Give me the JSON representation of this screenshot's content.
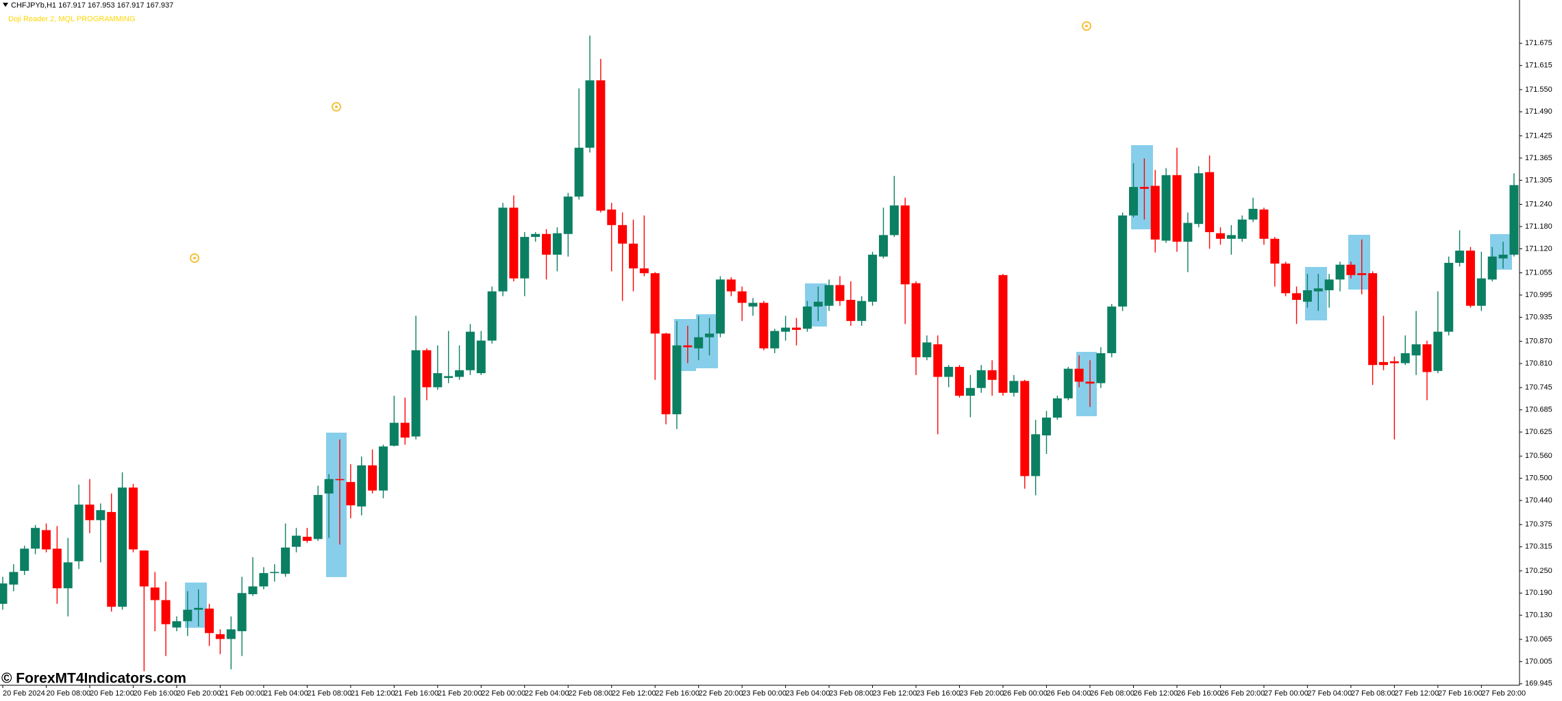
{
  "chart_data": {
    "type": "candlestick",
    "title": "CHFJPYb,H1  167.917 167.953 167.917 167.937",
    "subtitle": "Doji Reader 2, MQL PROGRAMMING",
    "watermark": "© ForexMT4Indicators.com",
    "up_color": "#0b7f62",
    "down_color": "#ff0000",
    "ylim": [
      169.941,
      171.792
    ],
    "yticks": [
      171.675,
      171.615,
      {
        "value": 171.55,
        "label": "171.550"
      },
      {
        "value": 171.49,
        "label": "171.490"
      },
      171.425,
      171.365,
      171.305,
      {
        "value": 171.24,
        "label": "171.240"
      },
      {
        "value": 171.18,
        "label": "171.180"
      },
      {
        "value": 171.12,
        "label": "171.120"
      },
      171.055,
      170.995,
      170.935,
      {
        "value": 170.87,
        "label": "170.870"
      },
      {
        "value": 170.81,
        "label": "170.810"
      },
      170.745,
      170.685,
      170.625,
      {
        "value": 170.56,
        "label": "170.560"
      },
      {
        "value": 170.5,
        "label": "170.500"
      },
      {
        "value": 170.44,
        "label": "170.440"
      },
      170.375,
      170.315,
      {
        "value": 170.25,
        "label": "170.250"
      },
      {
        "value": 170.19,
        "label": "170.190"
      },
      {
        "value": 170.13,
        "label": "170.130"
      },
      170.065,
      170.005,
      169.945
    ],
    "categories": [
      "20 Feb 2024",
      null,
      null,
      null,
      "20 Feb 08:00",
      null,
      null,
      null,
      "20 Feb 12:00",
      null,
      null,
      null,
      "20 Feb 16:00",
      null,
      null,
      null,
      "20 Feb 20:00",
      null,
      null,
      null,
      "21 Feb 00:00",
      null,
      null,
      null,
      "21 Feb 04:00",
      null,
      null,
      null,
      "21 Feb 08:00",
      null,
      null,
      null,
      "21 Feb 12:00",
      null,
      null,
      null,
      "21 Feb 16:00",
      null,
      null,
      null,
      "21 Feb 20:00",
      null,
      null,
      null,
      "22 Feb 00:00",
      null,
      null,
      null,
      "22 Feb 04:00",
      null,
      null,
      null,
      "22 Feb 08:00",
      null,
      null,
      null,
      "22 Feb 12:00",
      null,
      null,
      null,
      "22 Feb 16:00",
      null,
      null,
      null,
      "22 Feb 20:00",
      null,
      null,
      null,
      "23 Feb 00:00",
      null,
      null,
      null,
      "23 Feb 04:00",
      null,
      null,
      null,
      "23 Feb 08:00",
      null,
      null,
      null,
      "23 Feb 12:00",
      null,
      null,
      null,
      "23 Feb 16:00",
      null,
      null,
      null,
      "23 Feb 20:00",
      null,
      null,
      null,
      "26 Feb 00:00",
      null,
      null,
      null,
      "26 Feb 04:00",
      null,
      null,
      null,
      "26 Feb 08:00",
      null,
      null,
      null,
      "26 Feb 12:00",
      null,
      null,
      null,
      "26 Feb 16:00",
      null,
      null,
      null,
      "26 Feb 20:00",
      null,
      null,
      null,
      "27 Feb 00:00",
      null,
      null,
      null,
      "27 Feb 04:00",
      null,
      null,
      null,
      "27 Feb 08:00",
      null,
      null,
      null,
      "27 Feb 12:00",
      null,
      null,
      null,
      "27 Feb 16:00",
      null,
      null,
      null,
      "27 Feb 20:00",
      null,
      null,
      null
    ],
    "ohlc": [
      [
        170.161,
        170.234,
        170.145,
        170.216
      ],
      [
        170.213,
        170.268,
        170.195,
        170.247
      ],
      [
        170.25,
        170.318,
        170.239,
        170.31
      ],
      [
        170.31,
        170.374,
        170.295,
        170.366
      ],
      [
        170.36,
        170.378,
        170.3,
        170.308
      ],
      [
        170.31,
        170.371,
        170.161,
        170.203
      ],
      [
        170.203,
        170.339,
        170.127,
        170.273
      ],
      [
        170.276,
        170.483,
        170.255,
        170.429
      ],
      [
        170.429,
        170.498,
        170.352,
        170.387
      ],
      [
        170.387,
        170.432,
        170.273,
        170.414
      ],
      [
        170.409,
        170.459,
        170.14,
        170.153
      ],
      [
        170.153,
        170.516,
        170.145,
        170.475
      ],
      [
        170.475,
        170.485,
        170.3,
        170.308
      ],
      [
        170.305,
        170.305,
        169.979,
        170.208
      ],
      [
        170.205,
        170.247,
        170.087,
        170.171
      ],
      [
        170.171,
        170.221,
        170.02,
        170.106
      ],
      [
        170.097,
        170.127,
        170.087,
        170.114
      ],
      [
        170.114,
        170.195,
        170.074,
        170.145
      ],
      [
        170.145,
        170.2,
        170.1,
        170.15
      ],
      [
        170.148,
        170.161,
        170.047,
        170.082
      ],
      [
        170.079,
        170.092,
        170.025,
        170.066
      ],
      [
        170.066,
        170.127,
        169.984,
        170.092
      ],
      [
        170.087,
        170.234,
        170.02,
        170.19
      ],
      [
        170.187,
        170.287,
        170.182,
        170.208
      ],
      [
        170.208,
        170.26,
        170.2,
        170.244
      ],
      [
        170.244,
        170.268,
        170.221,
        170.247
      ],
      [
        170.242,
        170.378,
        170.234,
        170.313
      ],
      [
        170.315,
        170.366,
        170.3,
        170.345
      ],
      [
        170.342,
        170.366,
        170.326,
        170.331
      ],
      [
        170.336,
        170.48,
        170.331,
        170.455
      ],
      [
        170.459,
        170.511,
        170.339,
        170.498
      ],
      [
        170.498,
        170.605,
        170.321,
        170.495
      ],
      [
        170.49,
        170.538,
        170.392,
        170.427
      ],
      [
        170.424,
        170.559,
        170.4,
        170.535
      ],
      [
        170.535,
        170.578,
        170.459,
        170.467
      ],
      [
        170.467,
        170.591,
        170.446,
        170.586
      ],
      [
        170.588,
        170.723,
        170.586,
        170.65
      ],
      [
        170.65,
        170.718,
        170.591,
        170.61
      ],
      [
        170.613,
        170.939,
        170.605,
        170.846
      ],
      [
        170.846,
        170.851,
        170.711,
        170.746
      ],
      [
        170.746,
        170.859,
        170.739,
        170.784
      ],
      [
        170.771,
        170.898,
        170.757,
        170.776
      ],
      [
        170.774,
        170.859,
        170.766,
        170.792
      ],
      [
        170.792,
        170.917,
        170.779,
        170.896
      ],
      [
        170.784,
        170.898,
        170.779,
        170.872
      ],
      [
        170.872,
        171.018,
        170.864,
        171.005
      ],
      [
        171.005,
        171.244,
        170.992,
        171.231
      ],
      [
        171.231,
        171.264,
        171.032,
        171.04
      ],
      [
        171.04,
        171.165,
        170.992,
        171.152
      ],
      [
        171.152,
        171.165,
        171.139,
        171.16
      ],
      [
        171.16,
        171.173,
        171.037,
        171.104
      ],
      [
        171.104,
        171.178,
        171.059,
        171.162
      ],
      [
        171.16,
        171.271,
        171.099,
        171.261
      ],
      [
        171.261,
        171.553,
        171.253,
        171.393
      ],
      [
        171.393,
        171.696,
        171.38,
        171.575
      ],
      [
        171.575,
        171.633,
        171.218,
        171.223
      ],
      [
        171.226,
        171.244,
        171.059,
        171.184
      ],
      [
        171.184,
        171.218,
        170.979,
        171.134
      ],
      [
        171.134,
        171.199,
        171.005,
        171.067
      ],
      [
        171.067,
        171.21,
        171.046,
        171.054
      ],
      [
        171.054,
        171.057,
        170.766,
        170.891
      ],
      [
        170.891,
        170.893,
        170.646,
        170.673
      ],
      [
        170.673,
        170.925,
        170.633,
        170.859
      ],
      [
        170.859,
        170.912,
        170.811,
        170.854
      ],
      [
        170.851,
        170.939,
        170.819,
        170.881
      ],
      [
        170.881,
        170.933,
        170.832,
        170.891
      ],
      [
        170.891,
        171.046,
        170.881,
        171.037
      ],
      [
        171.037,
        171.043,
        170.992,
        171.005
      ],
      [
        171.005,
        171.018,
        170.925,
        170.974
      ],
      [
        170.964,
        170.987,
        170.939,
        170.974
      ],
      [
        170.974,
        170.979,
        170.846,
        170.851
      ],
      [
        170.851,
        170.904,
        170.838,
        170.898
      ],
      [
        170.896,
        170.939,
        170.872,
        170.907
      ],
      [
        170.907,
        170.933,
        170.859,
        170.901
      ],
      [
        170.904,
        170.979,
        170.896,
        170.964
      ],
      [
        170.964,
        171.018,
        170.925,
        170.977
      ],
      [
        170.966,
        171.037,
        170.952,
        171.022
      ],
      [
        171.022,
        171.046,
        170.966,
        170.979
      ],
      [
        170.982,
        171.032,
        170.912,
        170.925
      ],
      [
        170.925,
        170.992,
        170.912,
        170.979
      ],
      [
        170.977,
        171.112,
        170.966,
        171.104
      ],
      [
        171.099,
        171.231,
        171.094,
        171.157
      ],
      [
        171.157,
        171.317,
        171.152,
        171.237
      ],
      [
        171.237,
        171.258,
        170.917,
        171.024
      ],
      [
        171.027,
        171.032,
        170.779,
        170.827
      ],
      [
        170.827,
        170.886,
        170.819,
        170.867
      ],
      [
        170.862,
        170.886,
        170.619,
        170.774
      ],
      [
        170.774,
        170.806,
        170.746,
        170.801
      ],
      [
        170.801,
        170.806,
        170.718,
        170.723
      ],
      [
        170.723,
        170.779,
        170.665,
        170.744
      ],
      [
        170.744,
        170.806,
        170.731,
        170.792
      ],
      [
        170.792,
        170.819,
        170.723,
        170.766
      ],
      [
        171.049,
        171.052,
        170.723,
        170.731
      ],
      [
        170.731,
        170.779,
        170.721,
        170.763
      ],
      [
        170.763,
        170.766,
        170.472,
        170.506
      ],
      [
        170.506,
        170.658,
        170.454,
        170.619
      ],
      [
        170.616,
        170.682,
        170.566,
        170.664
      ],
      [
        170.664,
        170.723,
        170.658,
        170.716
      ],
      [
        170.716,
        170.801,
        170.711,
        170.796
      ],
      [
        170.796,
        170.832,
        170.746,
        170.761
      ],
      [
        170.761,
        170.819,
        170.693,
        170.756
      ],
      [
        170.757,
        170.854,
        170.744,
        170.838
      ],
      [
        170.838,
        170.971,
        170.827,
        170.964
      ],
      [
        170.964,
        171.218,
        170.952,
        171.21
      ],
      [
        171.21,
        171.351,
        171.205,
        171.287
      ],
      [
        171.287,
        171.364,
        171.199,
        171.282
      ],
      [
        171.29,
        171.333,
        171.11,
        171.145
      ],
      [
        171.142,
        171.338,
        171.136,
        171.319
      ],
      [
        171.319,
        171.393,
        171.112,
        171.139
      ],
      [
        171.139,
        171.218,
        171.057,
        171.19
      ],
      [
        171.187,
        171.343,
        171.178,
        171.324
      ],
      [
        171.327,
        171.372,
        171.12,
        171.165
      ],
      [
        171.162,
        171.178,
        171.131,
        171.147
      ],
      [
        171.147,
        171.184,
        171.104,
        171.157
      ],
      [
        171.147,
        171.21,
        171.139,
        171.199
      ],
      [
        171.199,
        171.258,
        171.192,
        171.228
      ],
      [
        171.226,
        171.231,
        171.131,
        171.147
      ],
      [
        171.147,
        171.152,
        171.018,
        171.08
      ],
      [
        171.08,
        171.085,
        170.992,
        171.0
      ],
      [
        171.0,
        171.018,
        170.917,
        170.982
      ],
      [
        170.977,
        171.052,
        170.961,
        171.008
      ],
      [
        171.005,
        171.052,
        170.952,
        171.013
      ],
      [
        171.008,
        171.052,
        170.961,
        171.037
      ],
      [
        171.037,
        171.085,
        171.005,
        171.077
      ],
      [
        171.077,
        171.085,
        171.04,
        171.049
      ],
      [
        171.054,
        171.145,
        170.997,
        171.049
      ],
      [
        171.054,
        171.059,
        170.752,
        170.806
      ],
      [
        170.814,
        170.939,
        170.792,
        170.806
      ],
      [
        170.816,
        170.829,
        170.605,
        170.811
      ],
      [
        170.811,
        170.886,
        170.806,
        170.838
      ],
      [
        170.832,
        170.952,
        170.779,
        170.862
      ],
      [
        170.862,
        170.872,
        170.711,
        170.787
      ],
      [
        170.79,
        171.005,
        170.784,
        170.896
      ],
      [
        170.896,
        171.099,
        170.886,
        171.082
      ],
      [
        171.082,
        171.17,
        171.072,
        171.115
      ],
      [
        171.115,
        171.125,
        170.961,
        170.966
      ],
      [
        170.966,
        171.112,
        170.952,
        171.04
      ],
      [
        171.037,
        171.125,
        171.032,
        171.099
      ],
      [
        171.094,
        171.139,
        171.067,
        171.104
      ],
      [
        171.104,
        171.324,
        171.099,
        171.292
      ]
    ]
  }
}
